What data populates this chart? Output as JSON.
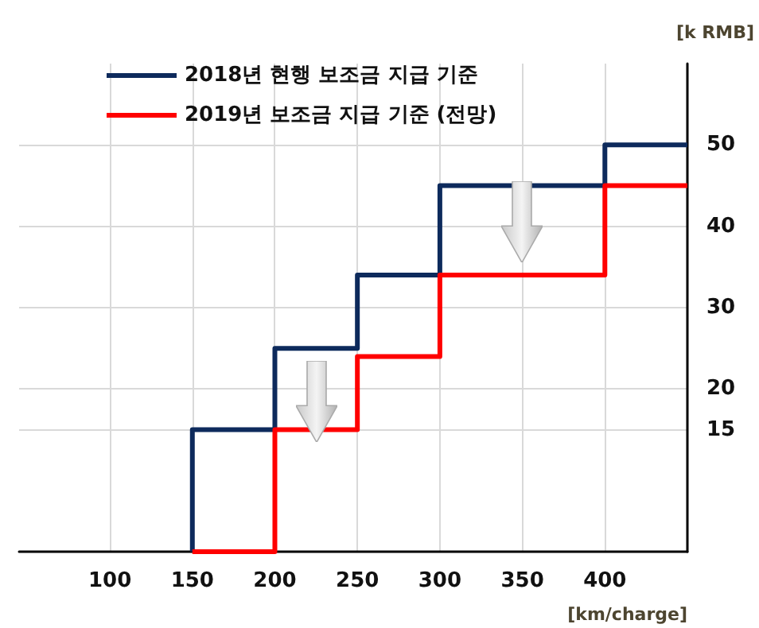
{
  "chart_data": {
    "type": "step",
    "xlabel": "[km/charge]",
    "ylabel": "[k RMB]",
    "series": [
      {
        "name": "2018년 현행 보조금 지급 기준",
        "color": "#0d2a5c",
        "x": [
          150,
          150,
          200,
          250,
          300,
          400,
          450
        ],
        "values": [
          0,
          15,
          25,
          34,
          45,
          50,
          50
        ]
      },
      {
        "name": "2019년 보조금 지급 기준 (전망)",
        "color": "#ff0000",
        "x": [
          150,
          200,
          250,
          300,
          400,
          450
        ],
        "values": [
          0,
          15,
          24,
          34,
          45,
          45
        ]
      }
    ],
    "xlim": [
      45,
      450
    ],
    "xticks": [
      100,
      150,
      200,
      250,
      300,
      350,
      400
    ],
    "ylim": [
      0,
      60
    ],
    "yticks": [
      15,
      20,
      30,
      40,
      50
    ],
    "grid": true,
    "legend": "top left",
    "marker": "none",
    "line_style": "solid"
  }
}
